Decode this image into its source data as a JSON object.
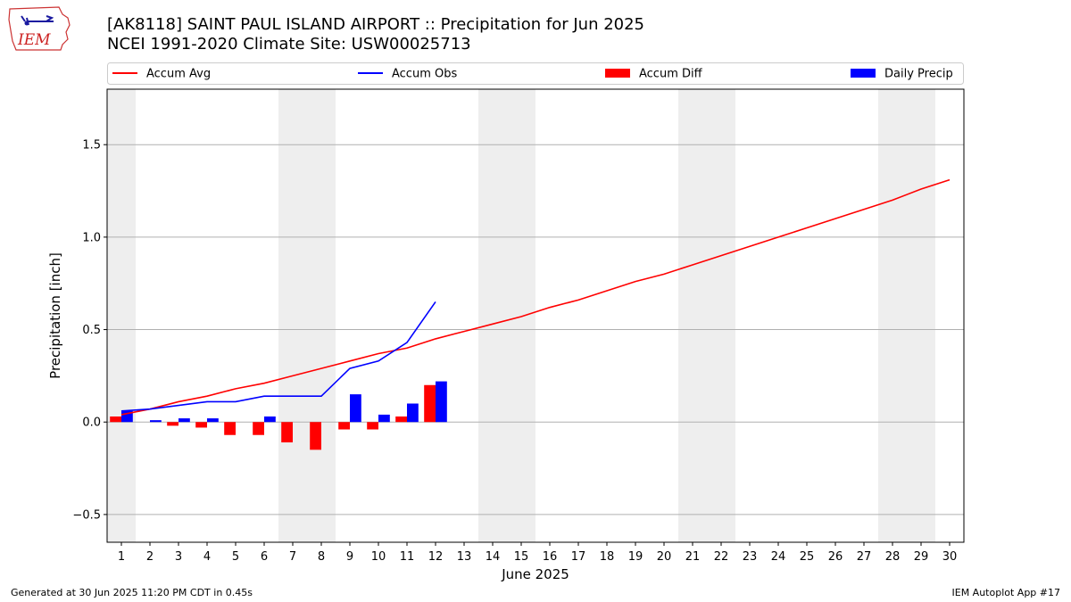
{
  "header": {
    "logo_text": "IEM",
    "title_line1": "[AK8118] SAINT PAUL ISLAND AIRPORT :: Precipitation for Jun 2025",
    "title_line2": "NCEI 1991-2020 Climate Site: USW00025713"
  },
  "footer": {
    "generated": "Generated at 30 Jun 2025 11:20 PM CDT in 0.45s",
    "app": "IEM Autoplot App #17"
  },
  "colors": {
    "accum_avg": "#ff0000",
    "accum_obs": "#0000ff",
    "accum_diff": "#ff0000",
    "daily_precip": "#0000ff",
    "weekend_shade": "#eeeeee",
    "grid": "#b0b0b0"
  },
  "chart_data": {
    "type": "bar",
    "xlabel": "June 2025",
    "ylabel": "Precipitation [inch]",
    "xlim": [
      0.5,
      30.5
    ],
    "ylim": [
      -0.65,
      1.8
    ],
    "yticks": [
      -0.5,
      0.0,
      0.5,
      1.0,
      1.5
    ],
    "ytick_labels": [
      "−0.5",
      "0.0",
      "0.5",
      "1.0",
      "1.5"
    ],
    "grid": "horizontal",
    "legend_position": "top",
    "days": [
      1,
      2,
      3,
      4,
      5,
      6,
      7,
      8,
      9,
      10,
      11,
      12,
      13,
      14,
      15,
      16,
      17,
      18,
      19,
      20,
      21,
      22,
      23,
      24,
      25,
      26,
      27,
      28,
      29,
      30
    ],
    "shaded_days": [
      1,
      7,
      8,
      14,
      15,
      21,
      22,
      28,
      29
    ],
    "legend": [
      {
        "name": "Accum Avg",
        "kind": "line",
        "color": "#ff0000"
      },
      {
        "name": "Accum Obs",
        "kind": "line",
        "color": "#0000ff"
      },
      {
        "name": "Accum Diff",
        "kind": "bar",
        "color": "#ff0000"
      },
      {
        "name": "Daily Precip",
        "kind": "bar",
        "color": "#0000ff"
      }
    ],
    "series": [
      {
        "name": "Accum Avg",
        "type": "line",
        "values": [
          0.04,
          0.07,
          0.11,
          0.14,
          0.18,
          0.21,
          0.25,
          0.29,
          0.33,
          0.37,
          0.4,
          0.45,
          0.49,
          0.53,
          0.57,
          0.62,
          0.66,
          0.71,
          0.76,
          0.8,
          0.85,
          0.9,
          0.95,
          1.0,
          1.05,
          1.1,
          1.15,
          1.2,
          1.26,
          1.31
        ]
      },
      {
        "name": "Accum Obs",
        "type": "line",
        "values": [
          0.06,
          0.07,
          0.09,
          0.11,
          0.11,
          0.14,
          0.14,
          0.14,
          0.29,
          0.33,
          0.43,
          0.65
        ]
      },
      {
        "name": "Accum Diff",
        "type": "bar",
        "values": [
          0.03,
          0.0,
          -0.02,
          -0.03,
          -0.07,
          -0.07,
          -0.11,
          -0.15,
          -0.04,
          -0.04,
          0.03,
          0.2
        ]
      },
      {
        "name": "Daily Precip",
        "type": "bar",
        "values": [
          0.06,
          0.01,
          0.02,
          0.02,
          0.0,
          0.03,
          0.0,
          0.0,
          0.15,
          0.04,
          0.1,
          0.22
        ]
      }
    ]
  }
}
